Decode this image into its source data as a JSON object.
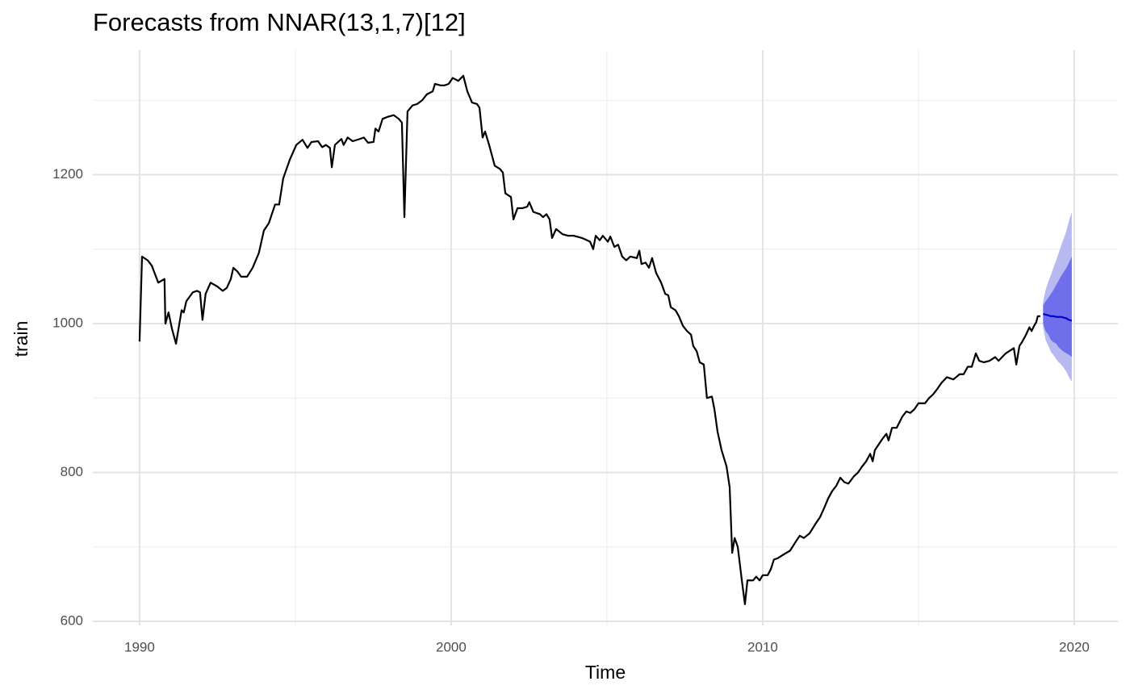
{
  "chart_data": {
    "type": "line",
    "title": "Forecasts from NNAR(13,1,7)[12]",
    "x_label": "Time",
    "y_label": "train",
    "xlim": [
      1988.5,
      2021.4
    ],
    "ylim": [
      594.6,
      1367.5
    ],
    "xticks": [
      1990,
      2000,
      2010,
      2020
    ],
    "yticks": [
      600,
      800,
      1000,
      1200
    ],
    "x_minor_ticks": [
      1995,
      2005,
      2015
    ],
    "y_minor_ticks": [
      700,
      900,
      1100,
      1300
    ],
    "grid": true,
    "train": {
      "color": "#000000",
      "x": [
        1990.0,
        1990.08,
        1990.26,
        1990.39,
        1990.6,
        1990.8,
        1990.83,
        1990.93,
        1991.04,
        1991.17,
        1991.35,
        1991.42,
        1991.5,
        1991.71,
        1991.84,
        1991.94,
        1992.02,
        1992.12,
        1992.28,
        1992.49,
        1992.67,
        1992.8,
        1992.93,
        1993.01,
        1993.14,
        1993.26,
        1993.45,
        1993.63,
        1993.83,
        1993.99,
        1994.15,
        1994.35,
        1994.48,
        1994.61,
        1994.82,
        1995.03,
        1995.23,
        1995.39,
        1995.52,
        1995.73,
        1995.86,
        1995.98,
        1996.11,
        1996.17,
        1996.27,
        1996.48,
        1996.55,
        1996.68,
        1996.84,
        1997.07,
        1997.2,
        1997.33,
        1997.51,
        1997.57,
        1997.67,
        1997.8,
        1997.98,
        1998.16,
        1998.32,
        1998.42,
        1998.5,
        1998.6,
        1998.76,
        1998.91,
        1999.07,
        1999.22,
        1999.41,
        1999.48,
        1999.66,
        1999.79,
        1999.92,
        2000.05,
        2000.23,
        2000.39,
        2000.52,
        2000.67,
        2000.83,
        2000.91,
        2001.01,
        2001.09,
        2001.22,
        2001.4,
        2001.56,
        2001.66,
        2001.74,
        2001.92,
        2002.0,
        2002.13,
        2002.28,
        2002.44,
        2002.51,
        2002.64,
        2002.85,
        2002.95,
        2003.06,
        2003.16,
        2003.24,
        2003.37,
        2003.58,
        2003.76,
        2003.94,
        2004.2,
        2004.46,
        2004.56,
        2004.64,
        2004.77,
        2004.87,
        2005.03,
        2005.11,
        2005.24,
        2005.36,
        2005.49,
        2005.62,
        2005.75,
        2005.96,
        2006.04,
        2006.11,
        2006.24,
        2006.35,
        2006.45,
        2006.58,
        2006.74,
        2006.87,
        2006.97,
        2007.05,
        2007.2,
        2007.31,
        2007.44,
        2007.57,
        2007.7,
        2007.77,
        2007.88,
        2007.98,
        2008.11,
        2008.21,
        2008.37,
        2008.45,
        2008.55,
        2008.68,
        2008.84,
        2008.94,
        2009.02,
        2009.1,
        2009.2,
        2009.33,
        2009.43,
        2009.51,
        2009.69,
        2009.79,
        2009.9,
        2010.0,
        2010.16,
        2010.26,
        2010.36,
        2010.49,
        2010.68,
        2010.88,
        2011.06,
        2011.19,
        2011.32,
        2011.5,
        2011.71,
        2011.84,
        2011.97,
        2012.1,
        2012.23,
        2012.36,
        2012.49,
        2012.62,
        2012.75,
        2012.93,
        2013.06,
        2013.19,
        2013.32,
        2013.45,
        2013.53,
        2013.6,
        2013.84,
        2013.97,
        2014.04,
        2014.15,
        2014.3,
        2014.48,
        2014.61,
        2014.74,
        2014.87,
        2015.0,
        2015.21,
        2015.34,
        2015.47,
        2015.6,
        2015.73,
        2015.91,
        2016.12,
        2016.32,
        2016.45,
        2016.58,
        2016.71,
        2016.84,
        2016.95,
        2017.1,
        2017.28,
        2017.46,
        2017.57,
        2017.8,
        2018.06,
        2018.14,
        2018.24,
        2018.32,
        2018.45,
        2018.56,
        2018.63,
        2018.71,
        2018.78,
        2018.83,
        2018.91
      ],
      "values": [
        976,
        1090,
        1085,
        1078,
        1055,
        1060,
        1000,
        1015,
        993,
        973,
        1018,
        1015,
        1030,
        1042,
        1044,
        1042,
        1005,
        1040,
        1055,
        1050,
        1044,
        1048,
        1060,
        1075,
        1070,
        1063,
        1063,
        1075,
        1095,
        1125,
        1135,
        1160,
        1160,
        1195,
        1220,
        1240,
        1247,
        1236,
        1244,
        1245,
        1237,
        1240,
        1236,
        1210,
        1240,
        1248,
        1240,
        1250,
        1245,
        1248,
        1250,
        1243,
        1244,
        1262,
        1258,
        1275,
        1278,
        1280,
        1275,
        1270,
        1143,
        1285,
        1293,
        1295,
        1300,
        1308,
        1312,
        1322,
        1320,
        1320,
        1322,
        1330,
        1326,
        1333,
        1312,
        1297,
        1295,
        1290,
        1250,
        1258,
        1240,
        1212,
        1208,
        1203,
        1175,
        1170,
        1140,
        1155,
        1155,
        1157,
        1163,
        1150,
        1147,
        1143,
        1147,
        1140,
        1115,
        1127,
        1120,
        1118,
        1118,
        1115,
        1110,
        1100,
        1118,
        1112,
        1118,
        1110,
        1117,
        1103,
        1106,
        1090,
        1085,
        1090,
        1088,
        1098,
        1080,
        1082,
        1075,
        1088,
        1068,
        1055,
        1040,
        1038,
        1022,
        1018,
        1010,
        997,
        990,
        985,
        970,
        963,
        948,
        945,
        900,
        902,
        885,
        855,
        830,
        808,
        780,
        692,
        712,
        700,
        655,
        623,
        655,
        655,
        660,
        655,
        662,
        662,
        670,
        683,
        685,
        690,
        695,
        707,
        715,
        712,
        718,
        732,
        740,
        752,
        765,
        775,
        782,
        793,
        787,
        785,
        795,
        800,
        808,
        815,
        825,
        815,
        830,
        845,
        852,
        843,
        860,
        860,
        875,
        882,
        880,
        885,
        893,
        893,
        900,
        905,
        912,
        920,
        928,
        925,
        932,
        932,
        942,
        942,
        960,
        950,
        948,
        950,
        955,
        950,
        960,
        967,
        945,
        970,
        975,
        985,
        995,
        990,
        997,
        1002,
        1010,
        1010
      ]
    },
    "forecast": {
      "mean_color": "#0000cc",
      "band80_color": "#6f6fec",
      "band95_color": "#b9b9f2",
      "x": [
        2019.0,
        2019.08,
        2019.17,
        2019.25,
        2019.33,
        2019.42,
        2019.5,
        2019.58,
        2019.67,
        2019.75,
        2019.83,
        2019.92
      ],
      "mean": [
        1013,
        1012,
        1011,
        1010,
        1010,
        1009,
        1009,
        1009,
        1008,
        1007,
        1005,
        1004
      ],
      "lower80": [
        1000,
        990,
        985,
        978,
        975,
        973,
        968,
        965,
        962,
        960,
        958,
        955
      ],
      "upper80": [
        1025,
        1030,
        1035,
        1040,
        1045,
        1052,
        1058,
        1064,
        1070,
        1075,
        1082,
        1090
      ],
      "lower95": [
        995,
        978,
        970,
        962,
        958,
        952,
        948,
        945,
        940,
        935,
        928,
        922
      ],
      "upper95": [
        1030,
        1045,
        1057,
        1065,
        1075,
        1085,
        1095,
        1105,
        1115,
        1125,
        1138,
        1150
      ]
    }
  }
}
